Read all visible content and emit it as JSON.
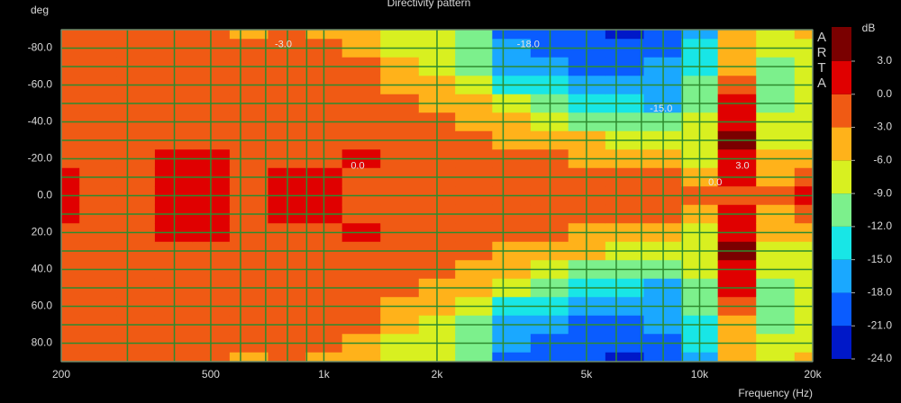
{
  "chart_data": {
    "type": "heatmap",
    "title": "Directivity pattern",
    "y_label": "deg",
    "x_label": "Frequency (Hz)",
    "colorbar_label": "dB",
    "watermark": "ARTA",
    "log_x": true,
    "xlim": [
      200,
      20000
    ],
    "ylim": [
      -90,
      90
    ],
    "xticks": [
      200,
      500,
      {
        "value": 1000,
        "label": "1k"
      },
      {
        "value": 2000,
        "label": "2k"
      },
      {
        "value": 5000,
        "label": "5k"
      },
      {
        "value": 10000,
        "label": "10k"
      },
      {
        "value": 20000,
        "label": "20k"
      }
    ],
    "yticks": [
      {
        "value": -80,
        "label": "-80.0"
      },
      {
        "value": -60,
        "label": "-60.0"
      },
      {
        "value": -40,
        "label": "-40.0"
      },
      {
        "value": -20,
        "label": "-20.0"
      },
      {
        "value": 0,
        "label": "0.0"
      },
      {
        "value": 20,
        "label": "20.0"
      },
      {
        "value": 40,
        "label": "40.0"
      },
      {
        "value": 60,
        "label": "60.0"
      },
      {
        "value": 80,
        "label": "80.0"
      }
    ],
    "xgrid": [
      300,
      400,
      600,
      700,
      800,
      900,
      3000,
      4000,
      6000,
      7000,
      8000,
      9000
    ],
    "ygrid": [
      -90,
      -70,
      -50,
      -30,
      -10,
      10,
      30,
      50,
      70,
      90
    ],
    "grid_color": "#2e8b2e",
    "colorbar": {
      "ticks": [
        {
          "value": 3,
          "label": "3.0"
        },
        {
          "value": 0,
          "label": "0.0"
        },
        {
          "value": -3,
          "label": "-3.0"
        },
        {
          "value": -6,
          "label": "-6.0"
        },
        {
          "value": -9,
          "label": "-9.0"
        },
        {
          "value": -12,
          "label": "-12.0"
        },
        {
          "value": -15,
          "label": "-15.0"
        },
        {
          "value": -18,
          "label": "-18.0"
        },
        {
          "value": -21,
          "label": "-21.0"
        },
        {
          "value": -24,
          "label": "-24.0"
        }
      ],
      "colors": [
        "#0018c8",
        "#0a5cff",
        "#1aa8ff",
        "#18e6e6",
        "#7cf08c",
        "#d8f020",
        "#ffb21a",
        "#f05a14",
        "#e00000"
      ],
      "over_color": "#7a0000"
    },
    "y": [
      -90,
      -80,
      -70,
      -60,
      -50,
      -40,
      -30,
      -20,
      -10,
      0,
      10,
      20,
      30,
      40,
      50,
      60,
      70,
      80,
      90
    ],
    "x": [
      200,
      250,
      315,
      400,
      500,
      630,
      800,
      1000,
      1250,
      1600,
      2000,
      2500,
      3150,
      4000,
      5000,
      6300,
      8000,
      10000,
      12500,
      16000,
      20000
    ],
    "z": [
      [
        -1,
        -1,
        -1,
        -1,
        -1,
        -1,
        -1,
        -1,
        0.3,
        0.5,
        0.3,
        -1,
        -1,
        -1,
        -1,
        -1,
        -1,
        -1,
        -1
      ],
      [
        -1,
        -1,
        -1,
        -1,
        -1,
        -1,
        -1,
        -1,
        -1,
        -1,
        -1,
        -1,
        -1,
        -1,
        -1,
        -1,
        -1,
        -1,
        -1
      ],
      [
        -1.5,
        -1,
        -1,
        -1,
        -1,
        -1,
        -1,
        -1,
        -1,
        -1,
        -1,
        -1,
        -1,
        -1,
        -1,
        -1,
        -1,
        -1,
        -1.5
      ],
      [
        -2,
        -1,
        -1,
        -1,
        -1,
        -1,
        -1,
        0.3,
        0.5,
        0.5,
        0.5,
        0.3,
        -1,
        -1,
        -1,
        -1,
        -1,
        -1,
        -2
      ],
      [
        -1.5,
        -1,
        -1,
        -1,
        -1,
        -1,
        -1,
        0.3,
        0.8,
        0.8,
        0.8,
        0.3,
        -1,
        -1,
        -1,
        -1,
        -1,
        -1,
        -1.5
      ],
      [
        -3.5,
        -1.5,
        -1,
        -1,
        -1,
        -1,
        -1,
        -1,
        -1,
        -1,
        -1,
        -1,
        -1,
        -1,
        -1,
        -1,
        -1,
        -1.5,
        -3.5
      ],
      [
        -2.5,
        -1.5,
        -1,
        -1,
        -1,
        -1,
        -1,
        -1,
        0.3,
        0.3,
        0.3,
        -1,
        -1,
        -1,
        -1,
        -1,
        -1,
        -1.5,
        -2.5
      ],
      [
        -3.5,
        -2,
        -1.5,
        -1,
        -1,
        -1,
        -1,
        -0.5,
        0.3,
        0.3,
        0.3,
        -0.5,
        -1,
        -1,
        -1,
        -1,
        -1.5,
        -2,
        -3.5
      ],
      [
        -4.5,
        -3.5,
        -3,
        -2,
        -1.5,
        -1,
        -1,
        0.2,
        -0.5,
        -0.5,
        -0.5,
        0.2,
        -1,
        -1,
        -1.5,
        -2,
        -3,
        -3.5,
        -4.5
      ],
      [
        -7,
        -6.5,
        -4.5,
        -3.5,
        -2,
        -1.5,
        -1,
        -1,
        -0.5,
        -0.5,
        -0.5,
        -1,
        -1,
        -1.5,
        -2,
        -3.5,
        -4.5,
        -6.5,
        -7
      ],
      [
        -9,
        -8,
        -7,
        -5,
        -3.5,
        -2,
        -1.5,
        -1,
        -1,
        -1,
        -1,
        -1,
        -1.5,
        -2,
        -3.5,
        -5,
        -7,
        -8,
        -9
      ],
      [
        -12,
        -11,
        -10,
        -8,
        -6,
        -4,
        -2.5,
        -1.5,
        -1,
        -1,
        -1,
        -1.5,
        -2.5,
        -4,
        -6,
        -8,
        -10,
        -11,
        -12
      ],
      [
        -19,
        -17,
        -16,
        -13,
        -9,
        -6,
        -3.5,
        -2,
        -1,
        -1,
        -1,
        -2,
        -3.5,
        -6,
        -9,
        -13,
        -16,
        -17,
        -19
      ],
      [
        -20,
        -19,
        -18,
        -15,
        -11,
        -8,
        -5,
        -3,
        -1.5,
        -1,
        -1.5,
        -3,
        -5,
        -8,
        -11,
        -15,
        -18,
        -19,
        -20
      ],
      [
        -21,
        -20,
        -19,
        -16,
        -13,
        -10,
        -6,
        -3.5,
        -1.5,
        -1,
        -1.5,
        -3.5,
        -6,
        -10,
        -13,
        -16,
        -19,
        -20,
        -21
      ],
      [
        -22,
        -20,
        -21,
        -18,
        -15,
        -11,
        -7,
        -4,
        -2,
        -1,
        -2,
        -4,
        -7,
        -11,
        -15,
        -18,
        -21,
        -20,
        -22
      ],
      [
        -20,
        -19,
        -17,
        -17,
        -16,
        -12,
        -8,
        -5,
        -2.5,
        -1,
        -2.5,
        -5,
        -8,
        -12,
        -16,
        -17,
        -17,
        -19,
        -20
      ],
      [
        -16,
        -15,
        -13,
        -12,
        -10,
        -9,
        -8,
        -7,
        -4,
        -1,
        -4,
        -7,
        -8,
        -9,
        -10,
        -12,
        -13,
        -15,
        -16
      ],
      [
        -5,
        -6,
        -5,
        -2,
        0,
        2,
        3.5,
        2,
        0.5,
        -1,
        0.5,
        2,
        3.5,
        2,
        0,
        -2,
        -5,
        -6,
        -5
      ],
      [
        -8,
        -9,
        -11,
        -12,
        -11,
        -9,
        -8,
        -6,
        -4,
        -2,
        -4,
        -6,
        -8,
        -9,
        -11,
        -12,
        -11,
        -9,
        -8
      ],
      [
        -6,
        -7,
        -8,
        -9,
        -9,
        -8,
        -7,
        -5,
        -2,
        0.5,
        -2,
        -5,
        -7,
        -8,
        -9,
        -9,
        -8,
        -7,
        -6
      ]
    ],
    "annotations": [
      {
        "text": "-3.0",
        "x": 780,
        "y": -82
      },
      {
        "text": "-18.0",
        "x": 3500,
        "y": -82
      },
      {
        "text": "-15.0",
        "x": 7900,
        "y": -47
      },
      {
        "text": "0.0",
        "x": 1230,
        "y": -16
      },
      {
        "text": "3.0",
        "x": 13000,
        "y": -16
      },
      {
        "text": "0.0",
        "x": 11000,
        "y": -7
      }
    ]
  }
}
